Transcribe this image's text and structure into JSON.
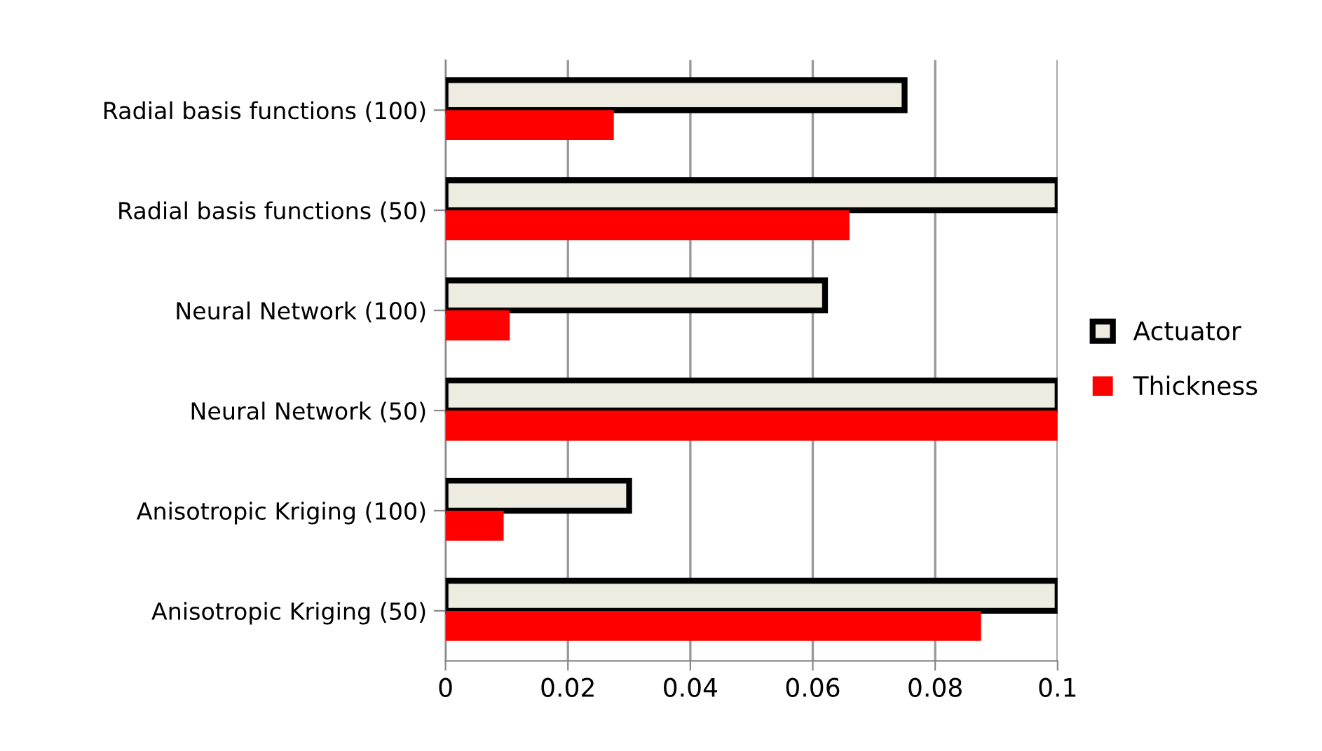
{
  "chart_data": {
    "type": "bar",
    "orientation": "horizontal",
    "categories": [
      "Radial basis functions (100)",
      "Radial basis functions (50)",
      "Neural Network (100)",
      "Neural Network (50)",
      "Anisotropic Kriging (100)",
      "Anisotropic Kriging (50)"
    ],
    "series": [
      {
        "name": "Actuator",
        "color": "#eeebe0",
        "values": [
          0.075,
          0.1,
          0.062,
          0.1,
          0.03,
          0.1
        ]
      },
      {
        "name": "Thickness",
        "color": "#ff0000",
        "values": [
          0.0275,
          0.066,
          0.0105,
          0.1,
          0.0095,
          0.0875
        ]
      }
    ],
    "xlim": [
      0,
      0.1
    ],
    "xticks": [
      0,
      0.02,
      0.04,
      0.06,
      0.08,
      0.1
    ],
    "grid": "x",
    "legend": "right"
  }
}
